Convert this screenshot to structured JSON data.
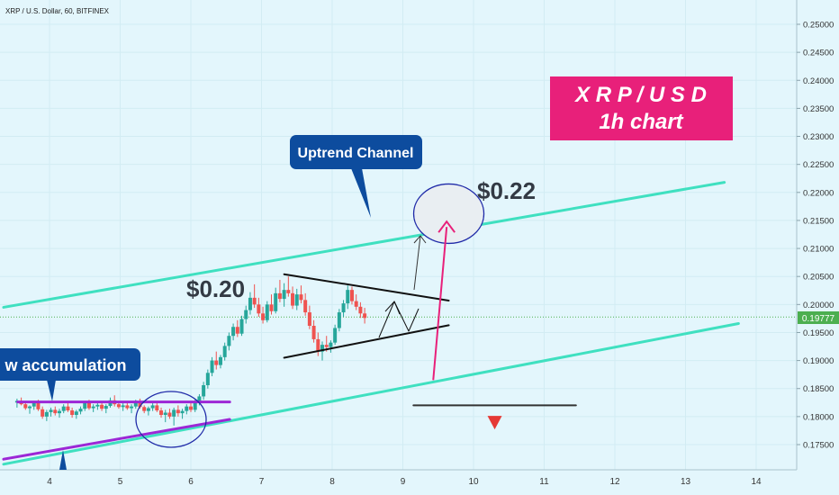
{
  "header": {
    "symbol_text": "XRP / U.S. Dollar, 60, BITFINEX"
  },
  "annotations": {
    "title_line1": "X R P / U S D",
    "title_line2": "1h chart",
    "uptrend_label": "Uptrend Channel",
    "accumulation_label": "w accumulation",
    "price_target": "$0.22",
    "price_level": "$0.20"
  },
  "colors": {
    "background": "#e3f6fc",
    "channel": "#3fe0c0",
    "candle_up": "#26a69a",
    "candle_down": "#ef5350",
    "accumulation": "#9c27d6",
    "callout_bg": "#0d4c9e",
    "title_bg": "#e8207a",
    "target_arrow": "#e8207a",
    "price_line": "#4caf50",
    "annotation_line": "#111111"
  },
  "chart_data": {
    "type": "candlestick",
    "title": "XRP / U.S. Dollar, 60, BITFINEX",
    "x_ticks": [
      "4",
      "5",
      "6",
      "7",
      "8",
      "9",
      "10",
      "11",
      "12",
      "13",
      "14"
    ],
    "y_ticks": [
      "0.25000",
      "0.24500",
      "0.24000",
      "0.23500",
      "0.23000",
      "0.22500",
      "0.22000",
      "0.21500",
      "0.21000",
      "0.20500",
      "0.20000",
      "0.19500",
      "0.19000",
      "0.18500",
      "0.18000",
      "0.17500"
    ],
    "ylim": [
      0.171,
      0.254
    ],
    "last_price": "0.19777",
    "candles": [
      [
        3.54,
        0.1825,
        0.1832,
        0.1816,
        0.1828
      ],
      [
        3.6,
        0.1828,
        0.1834,
        0.182,
        0.1822
      ],
      [
        3.66,
        0.1822,
        0.1826,
        0.1812,
        0.1815
      ],
      [
        3.72,
        0.1815,
        0.182,
        0.1805,
        0.1818
      ],
      [
        3.78,
        0.1818,
        0.1828,
        0.1812,
        0.1824
      ],
      [
        3.84,
        0.1824,
        0.183,
        0.181,
        0.1813
      ],
      [
        3.9,
        0.1813,
        0.1818,
        0.1796,
        0.18
      ],
      [
        3.96,
        0.18,
        0.1812,
        0.1792,
        0.1808
      ],
      [
        4.02,
        0.1808,
        0.1816,
        0.18,
        0.1812
      ],
      [
        4.08,
        0.1812,
        0.1818,
        0.1802,
        0.1806
      ],
      [
        4.14,
        0.1806,
        0.1814,
        0.1798,
        0.181
      ],
      [
        4.2,
        0.181,
        0.1822,
        0.1806,
        0.1818
      ],
      [
        4.26,
        0.1818,
        0.1824,
        0.1808,
        0.1811
      ],
      [
        4.32,
        0.1811,
        0.1816,
        0.1798,
        0.1803
      ],
      [
        4.38,
        0.1803,
        0.1812,
        0.1796,
        0.1809
      ],
      [
        4.44,
        0.1809,
        0.1818,
        0.1804,
        0.1814
      ],
      [
        4.5,
        0.1814,
        0.1828,
        0.181,
        0.1824
      ],
      [
        4.56,
        0.1824,
        0.183,
        0.1812,
        0.1815
      ],
      [
        4.62,
        0.1815,
        0.1822,
        0.1808,
        0.1818
      ],
      [
        4.68,
        0.1818,
        0.1826,
        0.1812,
        0.1821
      ],
      [
        4.74,
        0.1821,
        0.1825,
        0.181,
        0.1814
      ],
      [
        4.8,
        0.1814,
        0.1822,
        0.1806,
        0.1819
      ],
      [
        4.86,
        0.1819,
        0.1834,
        0.1816,
        0.1829
      ],
      [
        4.92,
        0.1829,
        0.1838,
        0.1818,
        0.1822
      ],
      [
        4.98,
        0.1822,
        0.1828,
        0.1814,
        0.1817
      ],
      [
        5.04,
        0.1817,
        0.1824,
        0.181,
        0.182
      ],
      [
        5.1,
        0.182,
        0.1826,
        0.1812,
        0.1815
      ],
      [
        5.16,
        0.1815,
        0.1822,
        0.1806,
        0.1818
      ],
      [
        5.22,
        0.1818,
        0.183,
        0.1814,
        0.1826
      ],
      [
        5.28,
        0.1826,
        0.1832,
        0.1814,
        0.1817
      ],
      [
        5.34,
        0.1817,
        0.182,
        0.1806,
        0.181
      ],
      [
        5.4,
        0.181,
        0.1818,
        0.1802,
        0.1815
      ],
      [
        5.46,
        0.1815,
        0.1824,
        0.181,
        0.182
      ],
      [
        5.52,
        0.182,
        0.1826,
        0.1808,
        0.1811
      ],
      [
        5.58,
        0.1811,
        0.1816,
        0.1798,
        0.1803
      ],
      [
        5.64,
        0.1803,
        0.1812,
        0.179,
        0.1807
      ],
      [
        5.7,
        0.1807,
        0.1814,
        0.1796,
        0.18
      ],
      [
        5.76,
        0.18,
        0.1816,
        0.1784,
        0.1812
      ],
      [
        5.82,
        0.1812,
        0.182,
        0.18,
        0.1806
      ],
      [
        5.88,
        0.1806,
        0.1814,
        0.1796,
        0.181
      ],
      [
        5.94,
        0.181,
        0.1822,
        0.1804,
        0.1818
      ],
      [
        6.0,
        0.1818,
        0.1826,
        0.1808,
        0.1812
      ],
      [
        6.06,
        0.1812,
        0.183,
        0.1808,
        0.1826
      ],
      [
        6.12,
        0.1826,
        0.184,
        0.182,
        0.1836
      ],
      [
        6.18,
        0.1836,
        0.1862,
        0.183,
        0.1856
      ],
      [
        6.24,
        0.1856,
        0.1884,
        0.185,
        0.1878
      ],
      [
        6.3,
        0.1878,
        0.1906,
        0.1872,
        0.19
      ],
      [
        6.36,
        0.19,
        0.1916,
        0.1884,
        0.1892
      ],
      [
        6.42,
        0.1892,
        0.191,
        0.1886,
        0.1906
      ],
      [
        6.48,
        0.1906,
        0.1932,
        0.19,
        0.1926
      ],
      [
        6.54,
        0.1926,
        0.195,
        0.1918,
        0.1944
      ],
      [
        6.6,
        0.1944,
        0.1966,
        0.1936,
        0.196
      ],
      [
        6.66,
        0.196,
        0.1972,
        0.1942,
        0.1948
      ],
      [
        6.72,
        0.1948,
        0.198,
        0.1944,
        0.1974
      ],
      [
        6.78,
        0.1974,
        0.1998,
        0.1966,
        0.199
      ],
      [
        6.84,
        0.199,
        0.2022,
        0.1982,
        0.2012
      ],
      [
        6.9,
        0.2012,
        0.2036,
        0.1994,
        0.2
      ],
      [
        6.96,
        0.2,
        0.2012,
        0.1978,
        0.1984
      ],
      [
        7.02,
        0.1984,
        0.1996,
        0.1966,
        0.1972
      ],
      [
        7.08,
        0.1972,
        0.2006,
        0.1968,
        0.2
      ],
      [
        7.14,
        0.2,
        0.2018,
        0.1982,
        0.1988
      ],
      [
        7.2,
        0.1988,
        0.203,
        0.1984,
        0.202
      ],
      [
        7.26,
        0.202,
        0.2044,
        0.2004,
        0.201
      ],
      [
        7.32,
        0.201,
        0.2038,
        0.1996,
        0.2026
      ],
      [
        7.38,
        0.2026,
        0.205,
        0.2014,
        0.202
      ],
      [
        7.44,
        0.202,
        0.2032,
        0.1992,
        0.1998
      ],
      [
        7.5,
        0.1998,
        0.2028,
        0.199,
        0.2018
      ],
      [
        7.56,
        0.2018,
        0.2034,
        0.2002,
        0.2008
      ],
      [
        7.62,
        0.2008,
        0.202,
        0.198,
        0.1986
      ],
      [
        7.68,
        0.1986,
        0.1998,
        0.1956,
        0.1962
      ],
      [
        7.74,
        0.1962,
        0.1972,
        0.1932,
        0.1938
      ],
      [
        7.8,
        0.1938,
        0.195,
        0.1908,
        0.1916
      ],
      [
        7.86,
        0.1916,
        0.1934,
        0.19,
        0.1928
      ],
      [
        7.92,
        0.1928,
        0.1944,
        0.1916,
        0.1924
      ],
      [
        7.98,
        0.1924,
        0.1936,
        0.1914,
        0.1932
      ],
      [
        8.04,
        0.1932,
        0.1964,
        0.1928,
        0.1958
      ],
      [
        8.1,
        0.1958,
        0.1992,
        0.1952,
        0.1986
      ],
      [
        8.16,
        0.1986,
        0.2008,
        0.1978,
        0.2002
      ],
      [
        8.22,
        0.2002,
        0.2034,
        0.1992,
        0.2026
      ],
      [
        8.28,
        0.2026,
        0.2032,
        0.2,
        0.2006
      ],
      [
        8.34,
        0.2006,
        0.2018,
        0.199,
        0.1996
      ],
      [
        8.4,
        0.1996,
        0.2004,
        0.1976,
        0.1984
      ],
      [
        8.46,
        0.1984,
        0.1994,
        0.1966,
        0.1976
      ]
    ],
    "channel_upper": [
      [
        3.35,
        0.1995
      ],
      [
        13.55,
        0.2218
      ]
    ],
    "channel_lower": [
      [
        3.35,
        0.1715
      ],
      [
        13.75,
        0.1966
      ]
    ],
    "triangle_upper": [
      [
        7.32,
        0.2054
      ],
      [
        9.65,
        0.2007
      ]
    ],
    "triangle_lower": [
      [
        7.32,
        0.1905
      ],
      [
        9.65,
        0.1963
      ]
    ],
    "accumulation_upper": [
      [
        3.55,
        0.1826
      ],
      [
        6.55,
        0.1826
      ]
    ],
    "accumulation_lower": [
      [
        3.35,
        0.1724
      ],
      [
        6.55,
        0.1795
      ]
    ],
    "target_arrow": {
      "from": [
        9.43,
        0.1865
      ],
      "to": [
        9.62,
        0.2148
      ]
    },
    "target_circle": {
      "center": [
        9.65,
        0.2162
      ]
    },
    "accumulation_circle": {
      "center": [
        5.72,
        0.1795
      ]
    },
    "support_line": [
      [
        9.15,
        0.182
      ],
      [
        11.45,
        0.182
      ]
    ],
    "sell_marker": [
      10.3,
      0.179
    ]
  }
}
